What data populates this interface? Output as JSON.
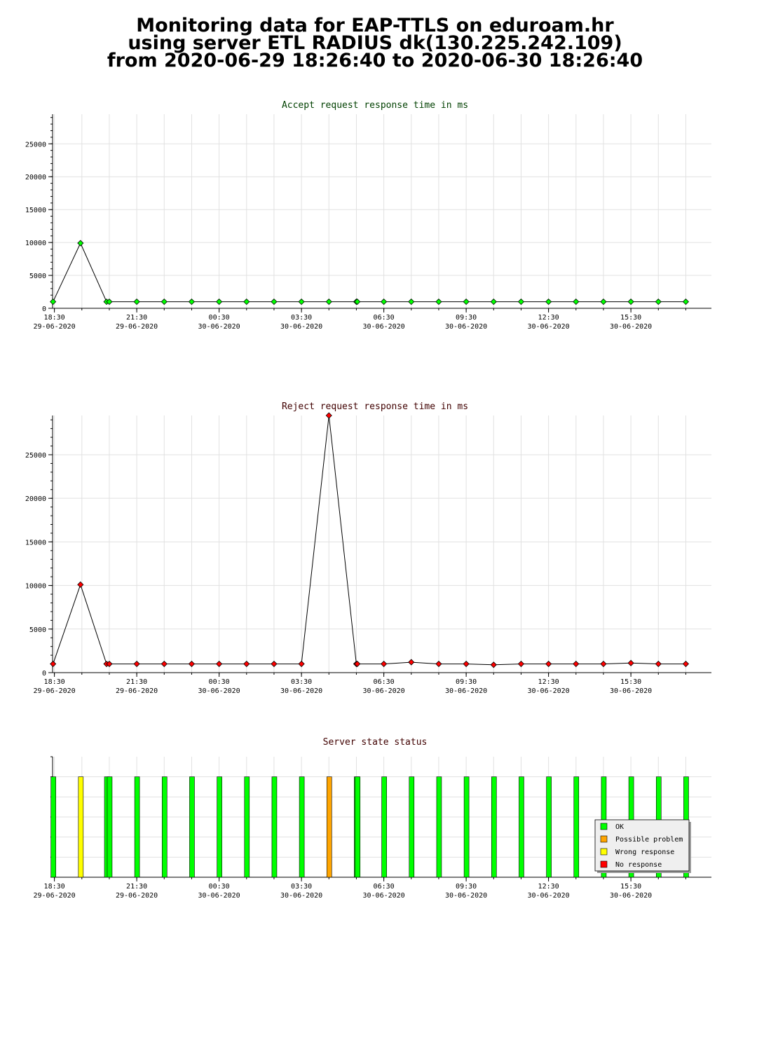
{
  "header": {
    "line1": "Monitoring data for EAP-TTLS on eduroam.hr",
    "line2": "using server ETL RADIUS dk(130.225.242.109)",
    "line3": "from 2020-06-29 18:26:40 to 2020-06-30 18:26:40"
  },
  "x_axis": {
    "ticks": [
      {
        "time": "18:30",
        "date": "29-06-2020"
      },
      {
        "time": "21:30",
        "date": "29-06-2020"
      },
      {
        "time": "00:30",
        "date": "30-06-2020"
      },
      {
        "time": "03:30",
        "date": "30-06-2020"
      },
      {
        "time": "06:30",
        "date": "30-06-2020"
      },
      {
        "time": "09:30",
        "date": "30-06-2020"
      },
      {
        "time": "12:30",
        "date": "30-06-2020"
      },
      {
        "time": "15:30",
        "date": "30-06-2020"
      }
    ]
  },
  "colors": {
    "accept_title": "#004000",
    "reject_title": "#400000",
    "status_title": "#400000",
    "accept_marker": "#00ff00",
    "reject_marker": "#ff0000",
    "ok": "#00ff00",
    "possible_problem": "#ffa500",
    "wrong_response": "#ffff00",
    "no_response": "#ff0000"
  },
  "chart_data": [
    {
      "type": "line",
      "title": "Accept request response time in ms",
      "ylim": [
        0,
        29500
      ],
      "yticks": [
        0,
        5000,
        10000,
        15000,
        20000,
        25000
      ],
      "grid": true,
      "x": [
        "18:27",
        "19:27",
        "20:24",
        "20:30",
        "21:30",
        "22:30",
        "23:30",
        "00:30",
        "01:30",
        "02:30",
        "03:30",
        "04:30",
        "05:30",
        "05:32",
        "06:30",
        "07:30",
        "08:30",
        "09:30",
        "10:30",
        "11:30",
        "12:30",
        "13:30",
        "14:30",
        "15:30",
        "16:30",
        "17:30"
      ],
      "values": [
        1000,
        9900,
        1000,
        1000,
        1000,
        1000,
        1000,
        1000,
        1000,
        1000,
        1000,
        1000,
        1000,
        1000,
        1000,
        1000,
        1000,
        1000,
        1000,
        1000,
        1000,
        1000,
        1000,
        1000,
        1000,
        1000
      ]
    },
    {
      "type": "line",
      "title": "Reject request response time in ms",
      "ylim": [
        0,
        29500
      ],
      "yticks": [
        0,
        5000,
        10000,
        15000,
        20000,
        25000
      ],
      "grid": true,
      "x": [
        "18:27",
        "19:27",
        "20:24",
        "20:30",
        "21:30",
        "22:30",
        "23:30",
        "00:30",
        "01:30",
        "02:30",
        "03:30",
        "04:30",
        "05:30",
        "05:32",
        "06:30",
        "07:30",
        "08:30",
        "09:30",
        "10:30",
        "11:30",
        "12:30",
        "13:30",
        "14:30",
        "15:30",
        "16:30",
        "17:30"
      ],
      "values": [
        1000,
        10100,
        1000,
        1000,
        1000,
        1000,
        1000,
        1000,
        1000,
        1000,
        1000,
        29500,
        1000,
        1000,
        1000,
        1200,
        1000,
        1000,
        900,
        1000,
        1000,
        1000,
        1000,
        1100,
        1000,
        1000
      ]
    },
    {
      "type": "bar",
      "title": "Server state status",
      "grid": true,
      "legend_position": "bottom-right",
      "legend": [
        {
          "label": "OK",
          "status": "ok"
        },
        {
          "label": "Possible problem",
          "status": "possible_problem"
        },
        {
          "label": "Wrong response",
          "status": "wrong_response"
        },
        {
          "label": "No response",
          "status": "no_response"
        }
      ],
      "x": [
        "18:27",
        "19:27",
        "20:24",
        "20:30",
        "21:30",
        "22:30",
        "23:30",
        "00:30",
        "01:30",
        "02:30",
        "03:30",
        "04:30",
        "05:30",
        "05:32",
        "06:30",
        "07:30",
        "08:30",
        "09:30",
        "10:30",
        "11:30",
        "12:30",
        "13:30",
        "14:30",
        "15:30",
        "16:30",
        "17:30"
      ],
      "statuses": [
        "ok",
        "wrong_response",
        "ok",
        "ok",
        "ok",
        "ok",
        "ok",
        "ok",
        "ok",
        "ok",
        "ok",
        "possible_problem",
        "ok",
        "ok",
        "ok",
        "ok",
        "ok",
        "ok",
        "ok",
        "ok",
        "ok",
        "ok",
        "ok",
        "ok",
        "ok",
        "ok"
      ]
    }
  ]
}
